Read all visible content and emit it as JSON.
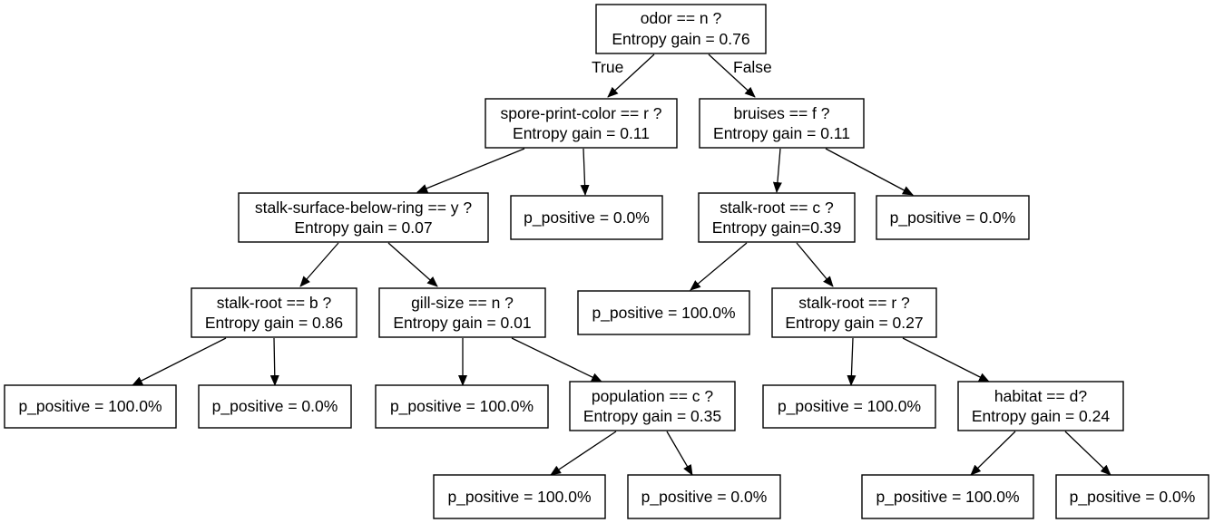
{
  "diagram": {
    "nodes": {
      "root": {
        "line1": "odor == n ?",
        "line2": "Entropy gain = 0.76"
      },
      "spore": {
        "line1": "spore-print-color == r ?",
        "line2": "Entropy gain = 0.11"
      },
      "bruises": {
        "line1": "bruises == f ?",
        "line2": "Entropy gain = 0.11"
      },
      "stalk_surface": {
        "line1": "stalk-surface-below-ring == y ?",
        "line2": "Entropy gain = 0.07"
      },
      "leaf_spore_right": {
        "line1": "p_positive = 0.0%"
      },
      "stalk_root_c": {
        "line1": "stalk-root == c ?",
        "line2": "Entropy gain=0.39"
      },
      "leaf_bruises_right": {
        "line1": "p_positive = 0.0%"
      },
      "stalk_root_b": {
        "line1": "stalk-root == b ?",
        "line2": "Entropy gain = 0.86"
      },
      "gill_size": {
        "line1": "gill-size == n ?",
        "line2": "Entropy gain = 0.01"
      },
      "leaf_c_left": {
        "line1": "p_positive = 100.0%"
      },
      "stalk_root_r": {
        "line1": "stalk-root == r ?",
        "line2": "Entropy gain = 0.27"
      },
      "leaf_b_left": {
        "line1": "p_positive = 100.0%"
      },
      "leaf_b_right": {
        "line1": "p_positive = 0.0%"
      },
      "leaf_gill_left": {
        "line1": "p_positive = 100.0%"
      },
      "population": {
        "line1": "population == c ?",
        "line2": "Entropy gain = 0.35"
      },
      "leaf_r_left": {
        "line1": "p_positive = 100.0%"
      },
      "habitat": {
        "line1": "habitat == d?",
        "line2": "Entropy gain = 0.24"
      },
      "leaf_pop_left": {
        "line1": "p_positive = 100.0%"
      },
      "leaf_pop_right": {
        "line1": "p_positive = 0.0%"
      },
      "leaf_hab_left": {
        "line1": "p_positive = 100.0%"
      },
      "leaf_hab_right": {
        "line1": "p_positive = 0.0%"
      }
    },
    "edge_labels": {
      "true_label": "True",
      "false_label": "False"
    }
  }
}
